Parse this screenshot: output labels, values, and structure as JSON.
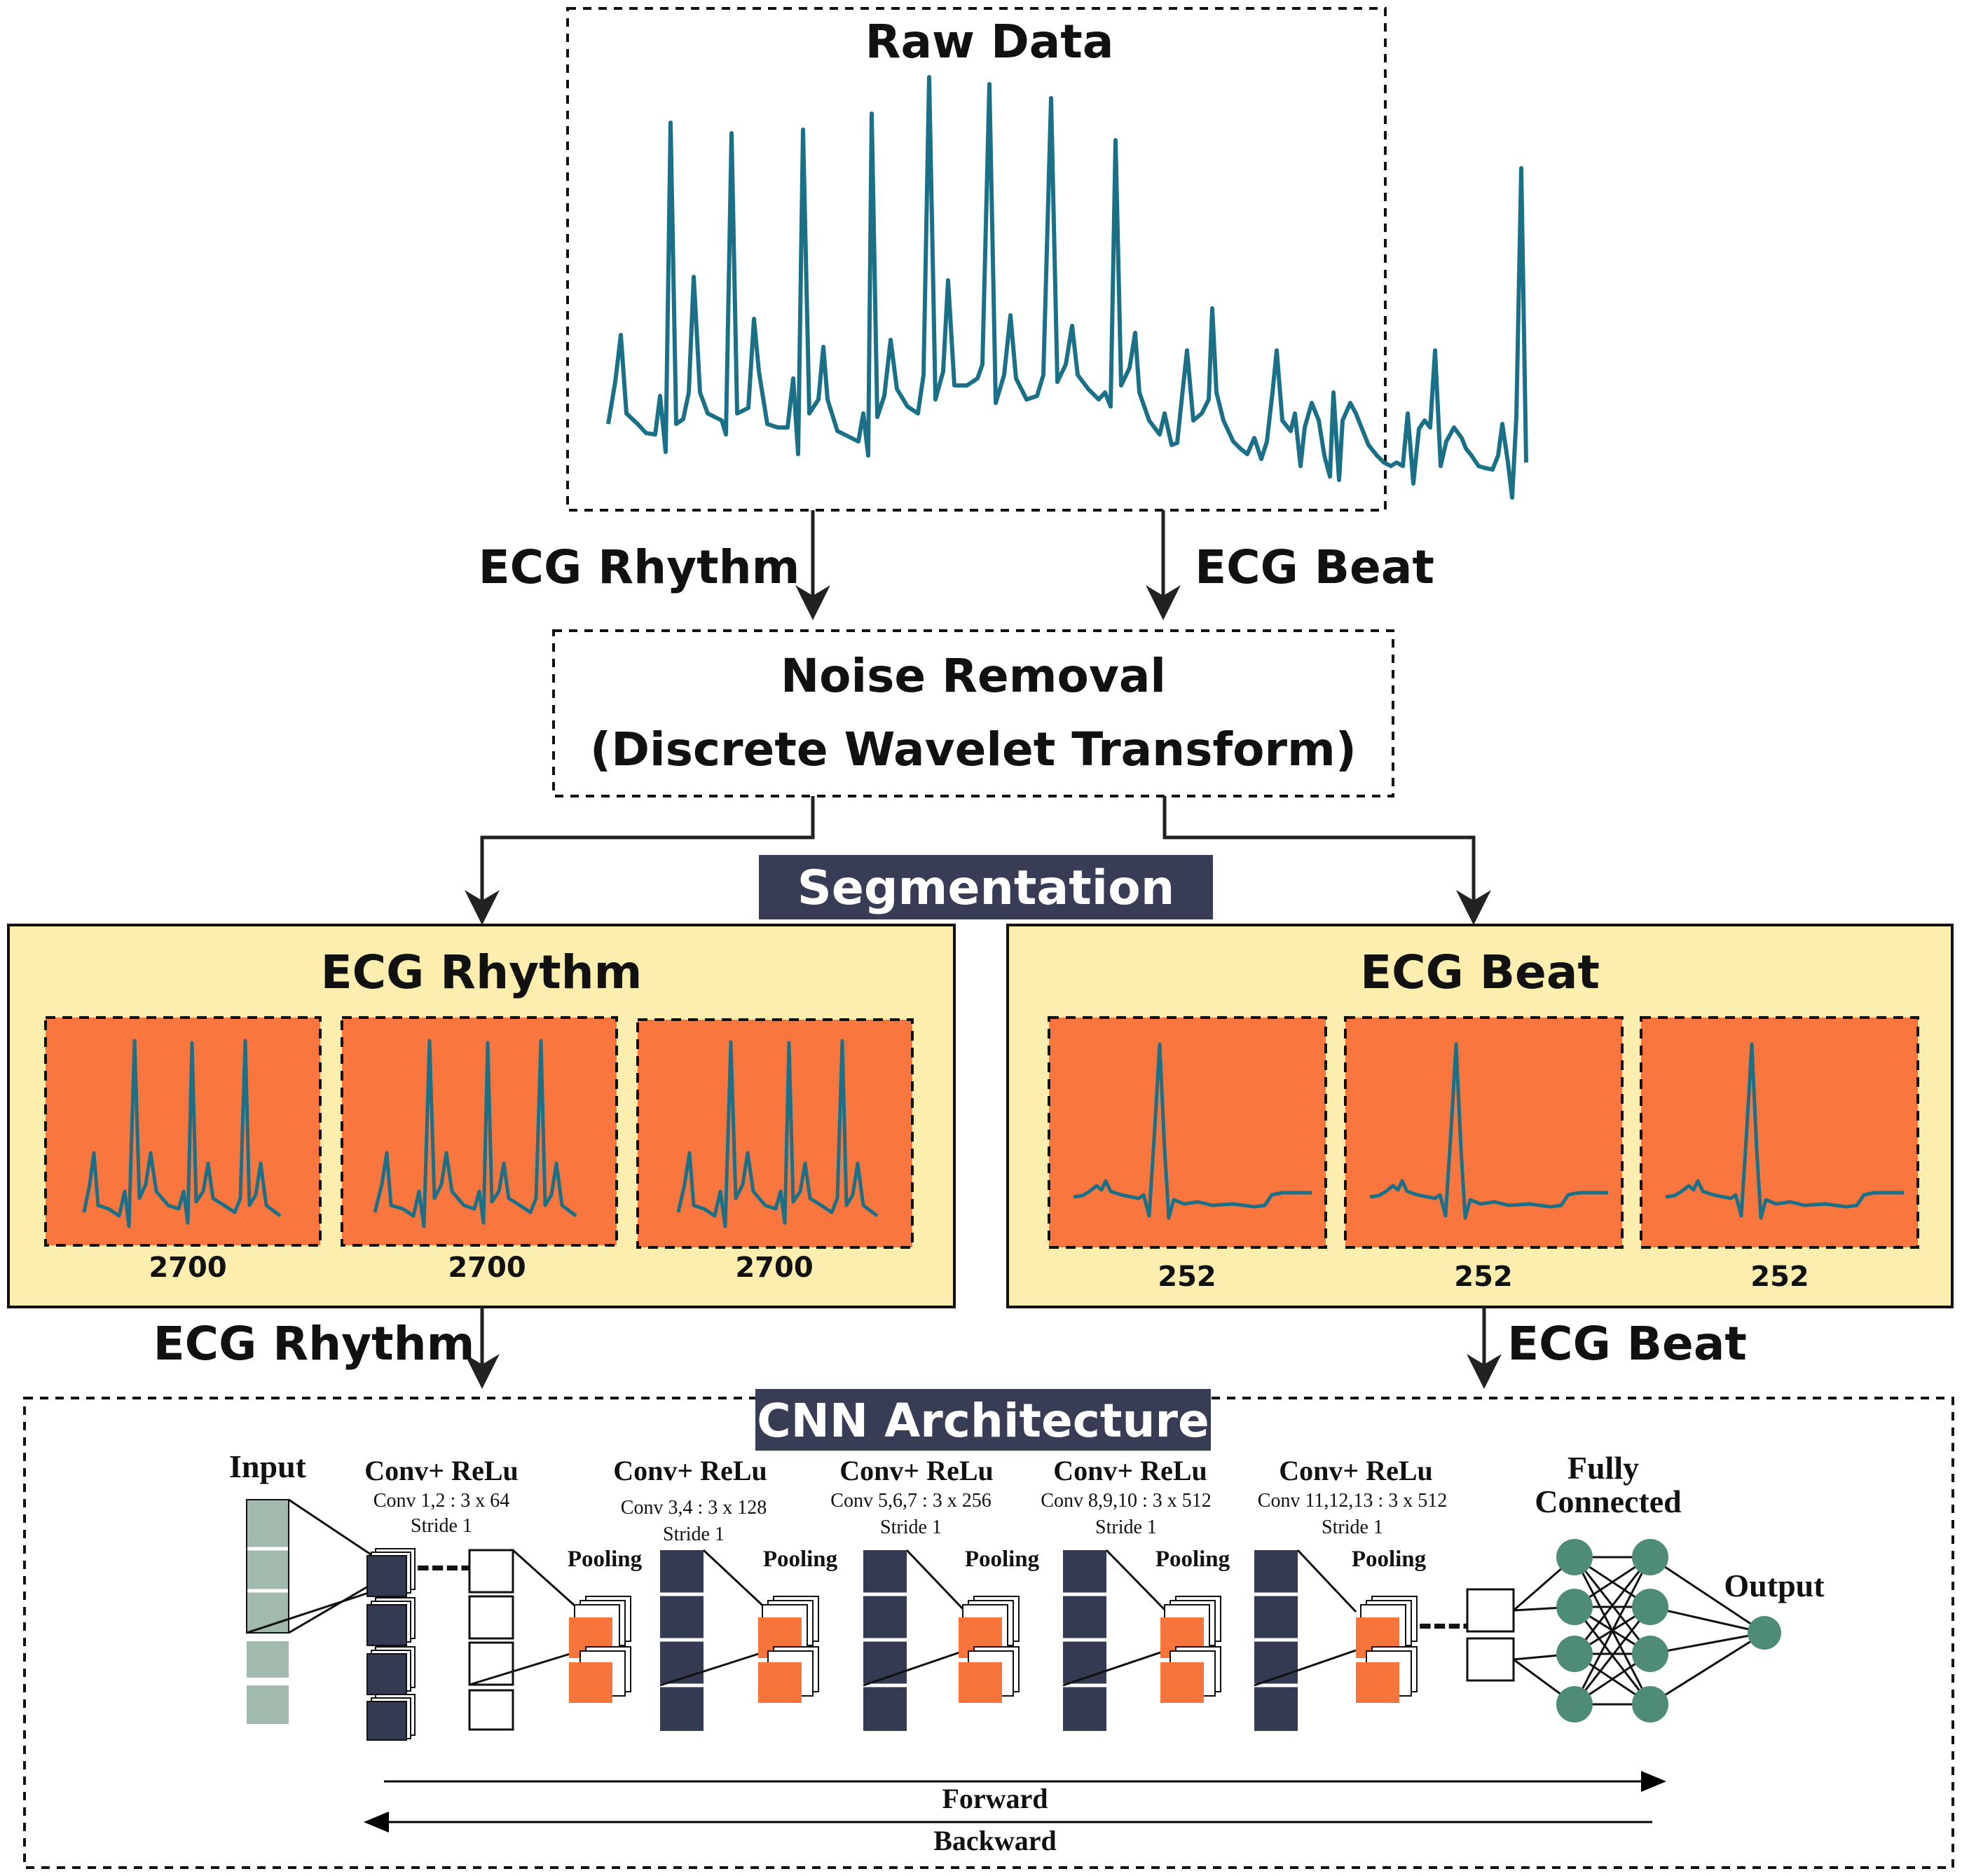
{
  "raw": {
    "title": "Raw Data"
  },
  "branch": {
    "left_label": "ECG Rhythm",
    "right_label": "ECG Beat"
  },
  "noise": {
    "line1": "Noise Removal",
    "line2": "(Discrete Wavelet Transform)"
  },
  "segmentation": {
    "label": "Segmentation"
  },
  "rhythm_panel": {
    "title": "ECG Rhythm",
    "sizes": [
      "2700",
      "2700",
      "2700"
    ]
  },
  "beat_panel": {
    "title": "ECG Beat",
    "sizes": [
      "252",
      "252",
      "252"
    ]
  },
  "lower_branch": {
    "left_label": "ECG Rhythm",
    "right_label": "ECG Beat"
  },
  "cnn": {
    "title": "CNN Architecture",
    "input_label": "Input",
    "blocks": [
      {
        "title": "Conv+ ReLu",
        "conv": "Conv 1,2 : 3 x 64",
        "stride": "Stride 1"
      },
      {
        "title": "Conv+ ReLu",
        "conv": "Conv 3,4 : 3 x 128",
        "stride": "Stride 1"
      },
      {
        "title": "Conv+ ReLu",
        "conv": "Conv 5,6,7 : 3 x 256",
        "stride": "Stride 1"
      },
      {
        "title": "Conv+ ReLu",
        "conv": "Conv 8,9,10 : 3 x 512",
        "stride": "Stride 1"
      },
      {
        "title": "Conv+ ReLu",
        "conv": "Conv 11,12,13 : 3 x 512",
        "stride": "Stride 1"
      }
    ],
    "pooling_label": "Pooling",
    "fc_line1": "Fully",
    "fc_line2": "Connected",
    "output_label": "Output",
    "forward_label": "Forward",
    "backward_label": "Backward"
  },
  "colors": {
    "ecg_line": "#1a7087",
    "panel_bg": "#fbeeae",
    "segment_bg": "#fa763f",
    "label_bg": "#383c55",
    "dark_block": "#333a52",
    "pool_block": "#f7753b",
    "input_block": "#a2b9ae",
    "node": "#4f8c76"
  }
}
